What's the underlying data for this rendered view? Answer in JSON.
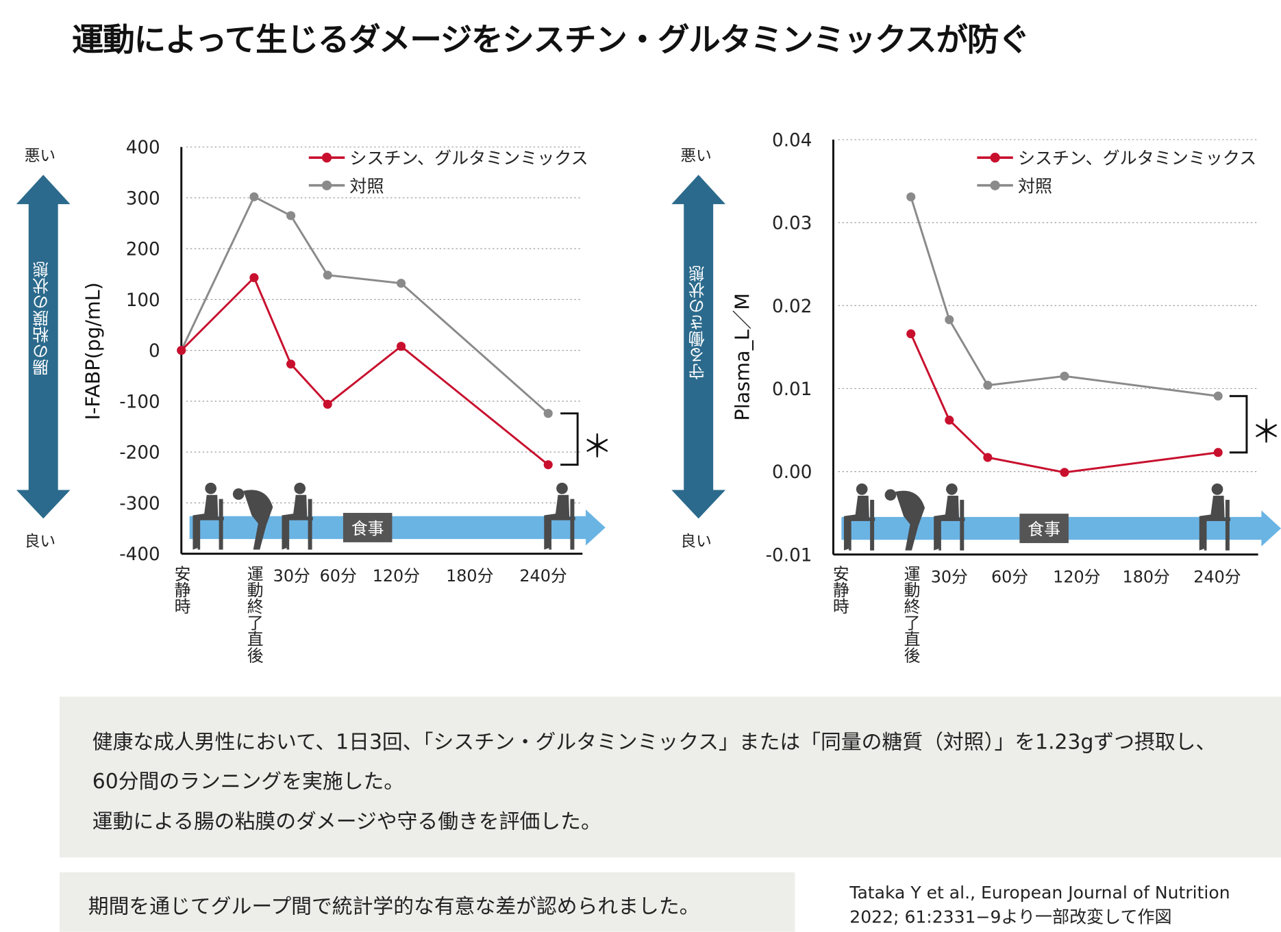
{
  "title": "運動によって生じるダメージをシスチン・グルタミンミックスが防ぐ",
  "side_labels": {
    "bad": "悪い",
    "good": "良い"
  },
  "colors": {
    "cystine_glutamine": "#c8102e",
    "control": "#8a8a8a",
    "side_arrow": "#2b6a8c",
    "time_arrow": "#6ab4e4",
    "meal_box": "#555555",
    "text_box": "#ededea"
  },
  "meal_label": "食事",
  "significance_mark": "＊",
  "chart_data": [
    {
      "type": "line",
      "side_title": "腸の粘膜の状態",
      "ylabel": "I-FABP(pg/mL)",
      "ylim": [
        -400,
        400
      ],
      "yticks": [
        "400",
        "300",
        "200",
        "100",
        "0",
        "-100",
        "-200",
        "-300",
        "-400"
      ],
      "ytick_values": [
        400,
        300,
        200,
        100,
        0,
        -100,
        -200,
        -300,
        -400
      ],
      "grid": true,
      "legend_position": "top-right",
      "x_points": [
        "安静時",
        "運動終了直後",
        "30分",
        "60分",
        "120分",
        "240分"
      ],
      "x_minutes": [
        null,
        0,
        30,
        60,
        120,
        240
      ],
      "xtick_labels": {
        "rest": "安静時",
        "post": "運動終了直後",
        "timed": [
          "30分",
          "60分",
          "120分",
          "180分",
          "240分"
        ]
      },
      "series": [
        {
          "name": "シスチン、グルタミンミックス",
          "color": "#c8102e",
          "values": [
            0,
            143,
            -27,
            -106,
            8,
            -225
          ]
        },
        {
          "name": "対照",
          "color": "#8a8a8a",
          "values": [
            0,
            302,
            265,
            148,
            132,
            -124
          ]
        }
      ]
    },
    {
      "type": "line",
      "side_title": "守る働きの状態",
      "ylabel": "Plasma_L／M",
      "ylim": [
        -0.01,
        0.04
      ],
      "yticks": [
        "0.04",
        "0.03",
        "0.02",
        "0.01",
        "0.00",
        "-0.01"
      ],
      "ytick_values": [
        0.04,
        0.03,
        0.02,
        0.01,
        0.0,
        -0.01
      ],
      "grid": true,
      "legend_position": "top-right",
      "x_points": [
        "運動終了直後",
        "30分",
        "60分",
        "120分",
        "240分"
      ],
      "x_minutes": [
        0,
        30,
        60,
        120,
        240
      ],
      "xtick_labels": {
        "rest": "安静時",
        "post": "運動終了直後",
        "timed": [
          "30分",
          "60分",
          "120分",
          "180分",
          "240分"
        ]
      },
      "series": [
        {
          "name": "シスチン、グルタミンミックス",
          "color": "#c8102e",
          "values": [
            0.0166,
            0.0062,
            0.0017,
            -0.0001,
            0.0023
          ]
        },
        {
          "name": "対照",
          "color": "#8a8a8a",
          "values": [
            0.0331,
            0.0183,
            0.0104,
            0.0115,
            0.0091
          ]
        }
      ]
    }
  ],
  "description": {
    "lines": [
      "健康な成人男性において、1日3回、「シスチン・グルタミンミックス」または「同量の糖質（対照）」を1.23gずつ摂取し、",
      "60分間のランニングを実施した。",
      "運動による腸の粘膜のダメージや守る働きを評価した。"
    ]
  },
  "conclusion": "期間を通じてグループ間で統計学的な有意な差が認められました。",
  "citation": {
    "line1": "Tataka Y et al., European Journal of Nutrition",
    "line2": "2022; 61:2331−9より一部改変して作図"
  }
}
